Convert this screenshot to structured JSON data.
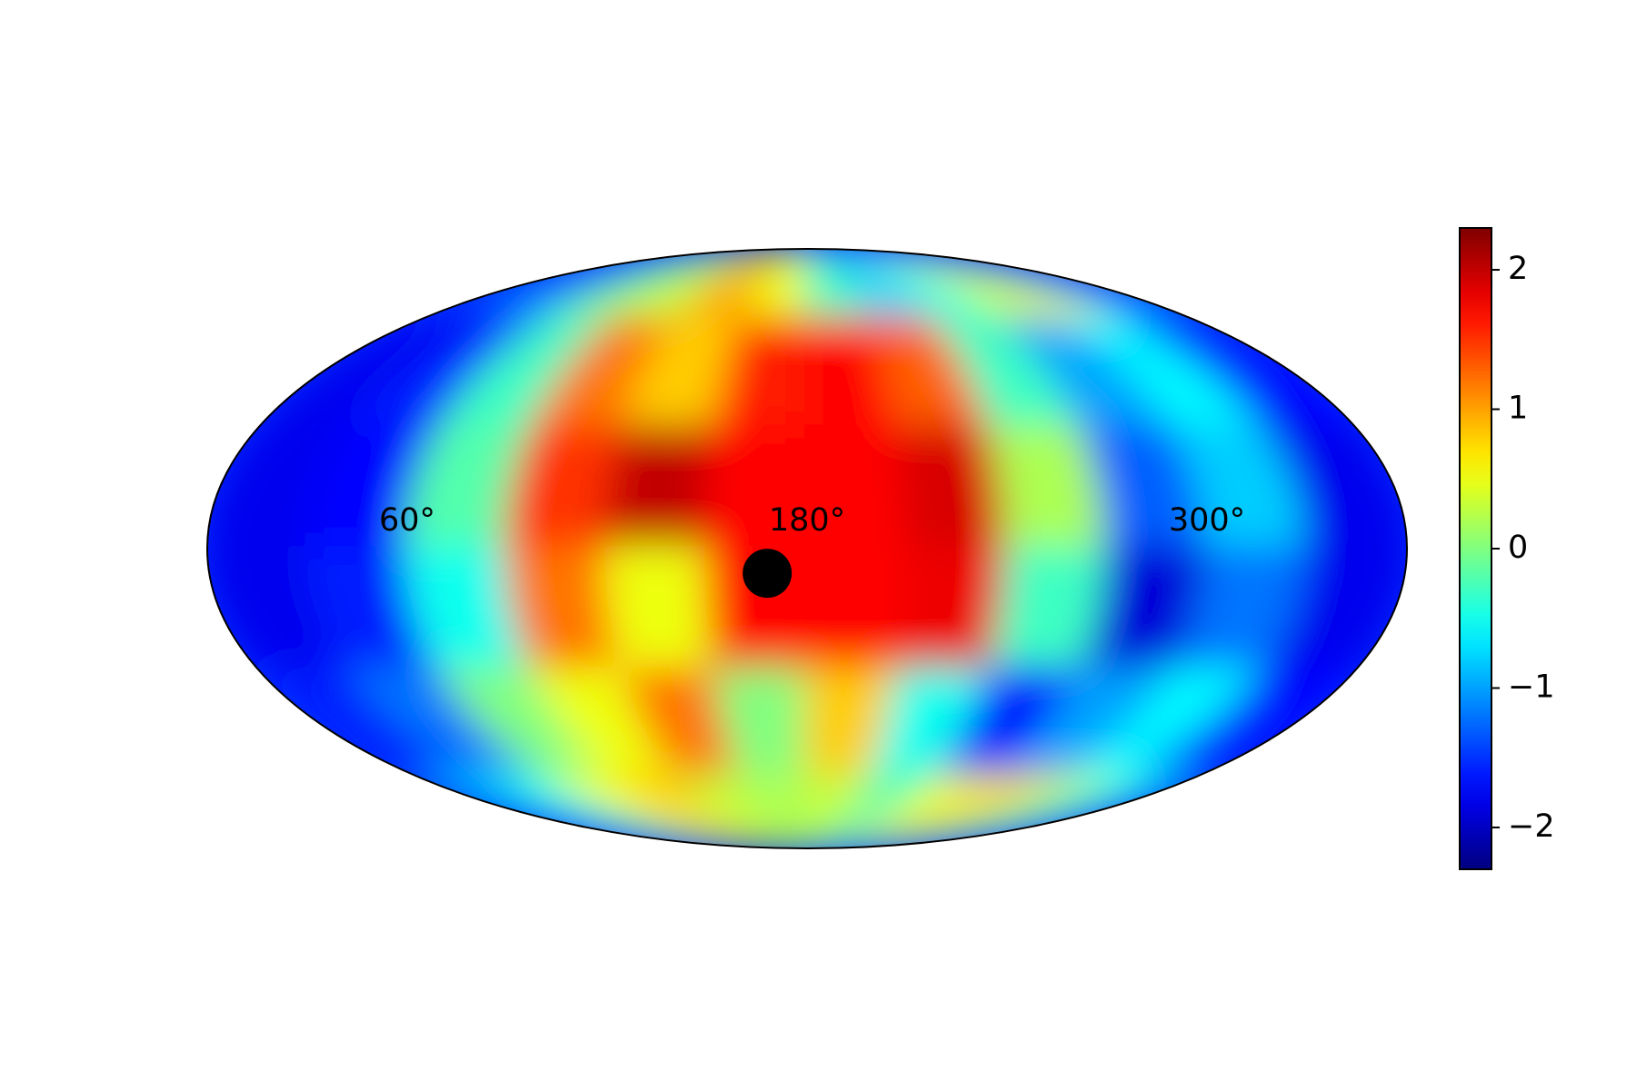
{
  "chart_data": {
    "type": "heatmap",
    "projection": "mollweide",
    "colormap": "jet",
    "x_bins": [
      0,
      30,
      60,
      90,
      120,
      150,
      180,
      210,
      240,
      270,
      300,
      330,
      360
    ],
    "y_bins": [
      90,
      60,
      30,
      0,
      -30,
      -60,
      -90
    ],
    "values": [
      [
        -1.5,
        -1.0,
        0.0,
        0.3,
        1.0,
        0.5,
        -0.3,
        -0.8,
        -0.5,
        0.3,
        0.5,
        -1.0
      ],
      [
        -1.8,
        -1.6,
        -0.3,
        1.2,
        0.8,
        1.6,
        1.7,
        1.3,
        -0.3,
        -1.0,
        -0.6,
        -1.7
      ],
      [
        -1.8,
        -1.7,
        -0.2,
        1.5,
        2.0,
        1.7,
        1.7,
        1.9,
        0.2,
        -1.3,
        -0.8,
        -1.8
      ],
      [
        -1.8,
        -1.6,
        -0.5,
        1.2,
        0.5,
        1.7,
        1.7,
        1.8,
        -0.3,
        -1.9,
        -1.2,
        -1.8
      ],
      [
        -1.6,
        -1.2,
        0.0,
        0.5,
        1.2,
        0.0,
        0.8,
        -0.5,
        -1.7,
        -1.0,
        -0.6,
        -1.7
      ],
      [
        -0.8,
        -0.5,
        0.5,
        0.8,
        0.3,
        0.2,
        0.3,
        -0.2,
        0.5,
        0.8,
        0.3,
        -0.5
      ]
    ],
    "xticks": [
      {
        "value": 60,
        "label": "60°"
      },
      {
        "value": 180,
        "label": "180°"
      },
      {
        "value": 300,
        "label": "300°"
      }
    ],
    "points": [
      {
        "x": 168,
        "y": -6,
        "color": "#000000"
      }
    ],
    "clim": [
      -2.3,
      2.3
    ],
    "cticks": [
      {
        "value": -2,
        "label": "−2"
      },
      {
        "value": -1,
        "label": "−1"
      },
      0,
      1,
      2
    ]
  }
}
